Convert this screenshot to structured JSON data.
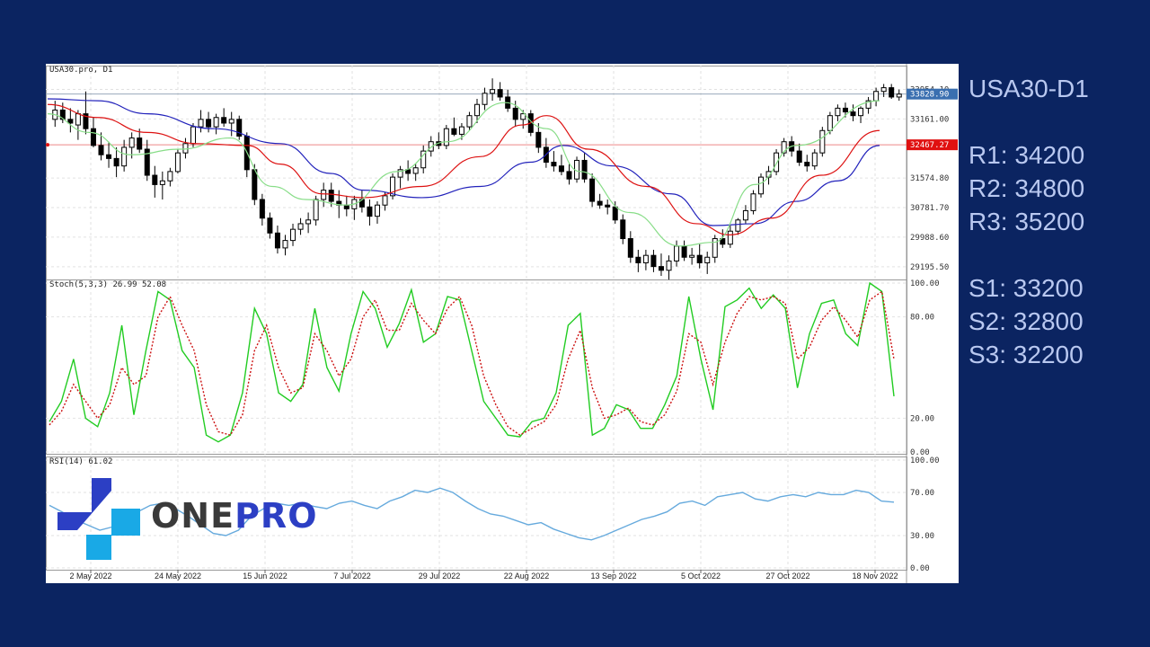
{
  "chart_data": {
    "type": "candlestick",
    "symbol_header": "USA30.pro, D1",
    "current_price": "33828.90",
    "marked_price": "32467.27",
    "price_axis_labels": [
      "33954.10",
      "33161.00",
      "31574.80",
      "30781.70",
      "29988.60",
      "29195.50"
    ],
    "price_range": [
      28950,
      34400
    ],
    "x_axis_labels": [
      "2 May 2022",
      "24 May 2022",
      "15 Jun 2022",
      "7 Jul 2022",
      "29 Jul 2022",
      "22 Aug 2022",
      "13 Sep 2022",
      "5 Oct 2022",
      "27 Oct 2022",
      "18 Nov 2022"
    ],
    "candles_ohlc": [
      [
        33150,
        33650,
        32950,
        33400
      ],
      [
        33400,
        33600,
        33050,
        33150
      ],
      [
        33150,
        33450,
        32800,
        33050
      ],
      [
        33000,
        33400,
        32600,
        33300
      ],
      [
        33300,
        33900,
        32750,
        32900
      ],
      [
        32900,
        33200,
        32400,
        32450
      ],
      [
        32450,
        32800,
        32050,
        32200
      ],
      [
        32200,
        32550,
        31850,
        32100
      ],
      [
        32100,
        32400,
        31600,
        31900
      ],
      [
        31900,
        32600,
        31750,
        32400
      ],
      [
        32400,
        32800,
        32100,
        32650
      ],
      [
        32650,
        32900,
        32250,
        32350
      ],
      [
        32350,
        32600,
        31500,
        31650
      ],
      [
        31650,
        31900,
        31050,
        31400
      ],
      [
        31400,
        31750,
        31000,
        31500
      ],
      [
        31500,
        31850,
        31350,
        31750
      ],
      [
        31750,
        32350,
        31700,
        32250
      ],
      [
        32250,
        32650,
        32100,
        32500
      ],
      [
        32500,
        33050,
        32400,
        32950
      ],
      [
        32950,
        33400,
        32800,
        33150
      ],
      [
        33150,
        33350,
        32800,
        32950
      ],
      [
        32950,
        33300,
        32750,
        33200
      ],
      [
        33200,
        33450,
        32950,
        33050
      ],
      [
        33050,
        33350,
        32700,
        33150
      ],
      [
        33150,
        33250,
        32600,
        32700
      ],
      [
        32700,
        32800,
        31600,
        31800
      ],
      [
        31800,
        31950,
        30850,
        31000
      ],
      [
        31000,
        31150,
        30300,
        30500
      ],
      [
        30500,
        30650,
        29950,
        30100
      ],
      [
        30100,
        30300,
        29550,
        29700
      ],
      [
        29700,
        30050,
        29500,
        29900
      ],
      [
        29900,
        30350,
        29750,
        30200
      ],
      [
        30200,
        30500,
        30050,
        30350
      ],
      [
        30350,
        30650,
        30100,
        30450
      ],
      [
        30450,
        31100,
        30300,
        31000
      ],
      [
        31000,
        31450,
        30800,
        31250
      ],
      [
        31250,
        31450,
        30800,
        30950
      ],
      [
        30950,
        31250,
        30500,
        30850
      ],
      [
        30850,
        31100,
        30550,
        30750
      ],
      [
        30750,
        31100,
        30450,
        31000
      ],
      [
        31000,
        31250,
        30650,
        30800
      ],
      [
        30800,
        31000,
        30300,
        30550
      ],
      [
        30550,
        30950,
        30350,
        30850
      ],
      [
        30850,
        31200,
        30700,
        31100
      ],
      [
        31100,
        31700,
        31000,
        31600
      ],
      [
        31600,
        31900,
        31300,
        31800
      ],
      [
        31800,
        32050,
        31500,
        31700
      ],
      [
        31700,
        31950,
        31500,
        31850
      ],
      [
        31850,
        32450,
        31700,
        32300
      ],
      [
        32300,
        32700,
        32150,
        32550
      ],
      [
        32550,
        32800,
        32350,
        32450
      ],
      [
        32450,
        33000,
        32350,
        32900
      ],
      [
        32900,
        33200,
        32700,
        32750
      ],
      [
        32750,
        33050,
        32600,
        32950
      ],
      [
        32950,
        33350,
        32850,
        33250
      ],
      [
        33250,
        33700,
        33050,
        33550
      ],
      [
        33550,
        34000,
        33400,
        33850
      ],
      [
        33850,
        34250,
        33650,
        33950
      ],
      [
        33950,
        34150,
        33650,
        33750
      ],
      [
        33750,
        33950,
        33350,
        33450
      ],
      [
        33450,
        33650,
        32950,
        33150
      ],
      [
        33150,
        33400,
        32900,
        33300
      ],
      [
        33300,
        33400,
        32700,
        32800
      ],
      [
        32800,
        33050,
        32250,
        32400
      ],
      [
        32400,
        32650,
        31850,
        32000
      ],
      [
        32000,
        32300,
        31750,
        31900
      ],
      [
        31900,
        32200,
        31650,
        31750
      ],
      [
        31750,
        31950,
        31400,
        31550
      ],
      [
        31550,
        32150,
        31450,
        32050
      ],
      [
        32050,
        32250,
        31450,
        31550
      ],
      [
        31550,
        31700,
        30800,
        30950
      ],
      [
        30950,
        31150,
        30750,
        30850
      ],
      [
        30850,
        31000,
        30600,
        30800
      ],
      [
        30800,
        30950,
        30350,
        30450
      ],
      [
        30450,
        30600,
        29800,
        29950
      ],
      [
        29950,
        30150,
        29300,
        29450
      ],
      [
        29450,
        29650,
        29050,
        29300
      ],
      [
        29300,
        29650,
        29100,
        29500
      ],
      [
        29500,
        29650,
        29050,
        29200
      ],
      [
        29200,
        29550,
        28950,
        29100
      ],
      [
        29100,
        29500,
        28850,
        29350
      ],
      [
        29350,
        29900,
        29200,
        29750
      ],
      [
        29750,
        29900,
        29350,
        29450
      ],
      [
        29450,
        29700,
        29250,
        29500
      ],
      [
        29500,
        29800,
        29150,
        29300
      ],
      [
        29300,
        29600,
        29000,
        29450
      ],
      [
        29450,
        30050,
        29300,
        29950
      ],
      [
        29950,
        30200,
        29700,
        29800
      ],
      [
        29800,
        30300,
        29700,
        30150
      ],
      [
        30150,
        30500,
        30050,
        30450
      ],
      [
        30450,
        30850,
        30350,
        30700
      ],
      [
        30700,
        31250,
        30600,
        31150
      ],
      [
        31150,
        31700,
        31050,
        31600
      ],
      [
        31600,
        31900,
        31400,
        31750
      ],
      [
        31750,
        32350,
        31650,
        32250
      ],
      [
        32250,
        32650,
        32150,
        32550
      ],
      [
        32550,
        32700,
        32150,
        32300
      ],
      [
        32300,
        32500,
        31900,
        32000
      ],
      [
        32000,
        32200,
        31750,
        31900
      ],
      [
        31900,
        32350,
        31800,
        32250
      ],
      [
        32250,
        32950,
        32150,
        32850
      ],
      [
        32850,
        33350,
        32750,
        33250
      ],
      [
        33250,
        33550,
        33100,
        33450
      ],
      [
        33450,
        33600,
        33200,
        33350
      ],
      [
        33350,
        33550,
        33100,
        33250
      ],
      [
        33250,
        33500,
        33050,
        33450
      ],
      [
        33450,
        33750,
        33300,
        33650
      ],
      [
        33650,
        34000,
        33500,
        33900
      ],
      [
        33900,
        34100,
        33750,
        34000
      ],
      [
        34000,
        34100,
        33700,
        33750
      ],
      [
        33750,
        33950,
        33650,
        33828
      ]
    ],
    "ma_series": [
      {
        "color": "#2222bb",
        "start": 33700,
        "points": [
          [
            0,
            33700
          ],
          [
            0.06,
            33650
          ],
          [
            0.12,
            33300
          ],
          [
            0.2,
            32900
          ],
          [
            0.28,
            32500
          ],
          [
            0.34,
            31700
          ],
          [
            0.38,
            31250
          ],
          [
            0.45,
            31050
          ],
          [
            0.52,
            31350
          ],
          [
            0.58,
            32000
          ],
          [
            0.62,
            32450
          ],
          [
            0.68,
            31900
          ],
          [
            0.75,
            31150
          ],
          [
            0.8,
            30300
          ],
          [
            0.85,
            30350
          ],
          [
            0.9,
            30950
          ],
          [
            0.95,
            31500
          ],
          [
            1,
            32450
          ]
        ]
      },
      {
        "color": "#dd1111",
        "points": [
          [
            0,
            33550
          ],
          [
            0.06,
            33200
          ],
          [
            0.12,
            32800
          ],
          [
            0.18,
            32500
          ],
          [
            0.24,
            32450
          ],
          [
            0.28,
            31950
          ],
          [
            0.33,
            31150
          ],
          [
            0.38,
            31050
          ],
          [
            0.45,
            31350
          ],
          [
            0.52,
            32150
          ],
          [
            0.57,
            33000
          ],
          [
            0.6,
            33250
          ],
          [
            0.65,
            32350
          ],
          [
            0.72,
            31350
          ],
          [
            0.78,
            30350
          ],
          [
            0.82,
            30050
          ],
          [
            0.87,
            30500
          ],
          [
            0.93,
            31650
          ],
          [
            1,
            32850
          ]
        ]
      },
      {
        "color": "#88dd88",
        "points": [
          [
            0,
            33300
          ],
          [
            0.05,
            32800
          ],
          [
            0.1,
            32200
          ],
          [
            0.16,
            32350
          ],
          [
            0.22,
            32650
          ],
          [
            0.27,
            31350
          ],
          [
            0.31,
            31000
          ],
          [
            0.36,
            30850
          ],
          [
            0.42,
            31750
          ],
          [
            0.48,
            32550
          ],
          [
            0.55,
            33600
          ],
          [
            0.6,
            32900
          ],
          [
            0.64,
            31750
          ],
          [
            0.7,
            30650
          ],
          [
            0.76,
            29750
          ],
          [
            0.8,
            29850
          ],
          [
            0.85,
            31400
          ],
          [
            0.9,
            32450
          ],
          [
            1,
            33650
          ]
        ]
      }
    ],
    "stoch": {
      "label": "Stoch(5,3,3) 26.99 52.08",
      "axis_labels": [
        "100.00",
        "80.00",
        "20.00",
        "0.00"
      ],
      "range": [
        0,
        100
      ],
      "k": [
        18,
        30,
        55,
        20,
        15,
        35,
        75,
        22,
        60,
        95,
        90,
        60,
        50,
        10,
        6,
        10,
        35,
        85,
        70,
        35,
        30,
        40,
        85,
        50,
        36,
        70,
        95,
        85,
        62,
        76,
        96,
        65,
        70,
        92,
        90,
        60,
        30,
        20,
        10,
        9,
        18,
        20,
        35,
        75,
        82,
        10,
        14,
        28,
        25,
        14,
        14,
        28,
        45,
        92,
        55,
        25,
        86,
        90,
        97,
        85,
        93,
        85,
        38,
        70,
        88,
        90,
        70,
        63,
        100,
        95,
        33
      ],
      "d": [
        16,
        24,
        40,
        30,
        20,
        28,
        50,
        40,
        45,
        80,
        92,
        75,
        60,
        28,
        12,
        10,
        22,
        60,
        75,
        50,
        35,
        38,
        70,
        60,
        45,
        55,
        80,
        90,
        72,
        72,
        88,
        78,
        70,
        85,
        92,
        75,
        45,
        28,
        15,
        10,
        14,
        18,
        28,
        55,
        72,
        38,
        20,
        22,
        26,
        18,
        16,
        22,
        36,
        70,
        65,
        40,
        65,
        82,
        92,
        90,
        92,
        88,
        55,
        62,
        78,
        86,
        78,
        68,
        90,
        95,
        55
      ]
    },
    "rsi": {
      "label": "RSI(14) 61.02",
      "axis_labels": [
        "100.00",
        "70.00",
        "30.00",
        "0.00"
      ],
      "range": [
        0,
        100
      ],
      "values": [
        58,
        52,
        45,
        40,
        35,
        38,
        45,
        52,
        58,
        60,
        55,
        48,
        40,
        32,
        30,
        35,
        48,
        55,
        60,
        58,
        60,
        57,
        55,
        60,
        62,
        58,
        55,
        62,
        66,
        72,
        70,
        74,
        70,
        62,
        55,
        50,
        48,
        44,
        40,
        42,
        36,
        32,
        28,
        26,
        30,
        35,
        40,
        45,
        48,
        52,
        60,
        62,
        58,
        66,
        68,
        70,
        64,
        62,
        66,
        68,
        66,
        70,
        68,
        68,
        72,
        70,
        62,
        61
      ]
    }
  },
  "levels": {
    "title": "USA30-D1",
    "resistance": [
      "R1: 34200",
      "R2: 34800",
      "R3: 35200"
    ],
    "support": [
      "S1: 33200",
      "S2: 32800",
      "S3: 32200"
    ]
  },
  "logo": {
    "part1": "ONE",
    "part2": "PRO"
  },
  "colors": {
    "background": "#0b2461",
    "stoch_k": "#22cc22",
    "stoch_d": "#cc1111",
    "rsi": "#66aadd",
    "price_tag": "#3a6fb0",
    "marked_tag": "#e01010",
    "logo_blue": "#2c3fc4",
    "logo_cyan": "#19a9e6"
  }
}
